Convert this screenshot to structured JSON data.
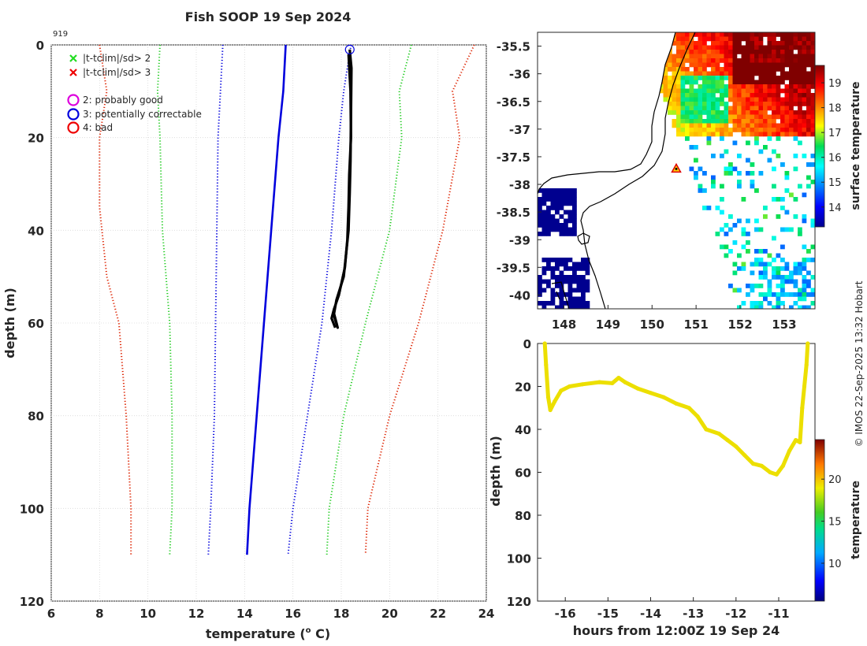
{
  "title": "Fish SOOP 19 Sep 2024",
  "profile_id": "919",
  "credit": "© IMOS 22-Sep-2025 13:32 Hobart",
  "colors": {
    "clim_mean": "#0000dd",
    "sd2": "#22cc22",
    "sd3": "#dd2200",
    "sd_mid": "#0000dd",
    "profile": "#000000",
    "track": "#ecdf00"
  },
  "legend": [
    {
      "name": "x-green",
      "marker": "x",
      "color": "#22dd22",
      "label": "|t-tclim|/sd> 2"
    },
    {
      "name": "x-red",
      "marker": "x",
      "color": "#ee0000",
      "label": "|t-tclim|/sd> 3"
    },
    {
      "name": "o-magenta",
      "marker": "o",
      "color": "#dd00dd",
      "label": "2: probably good"
    },
    {
      "name": "o-blue",
      "marker": "o",
      "color": "#0000dd",
      "label": "3: potentially correctable"
    },
    {
      "name": "o-red",
      "marker": "o",
      "color": "#ee0000",
      "label": "4: bad"
    }
  ],
  "chart_data": [
    {
      "id": "profile",
      "type": "line",
      "xlabel": "temperature (",
      "xlabel_sup": "o",
      "xlabel_end": " C)",
      "ylabel": "depth (m)",
      "xlim": [
        6,
        24
      ],
      "ylim": [
        0,
        120
      ],
      "xticks": [
        6,
        8,
        10,
        12,
        14,
        16,
        18,
        20,
        22,
        24
      ],
      "yticks": [
        0,
        20,
        40,
        60,
        80,
        100,
        120
      ],
      "series": [
        {
          "name": "clim-mean",
          "style": "solid",
          "color": "#0000dd",
          "points": [
            [
              15.7,
              0
            ],
            [
              15.6,
              10
            ],
            [
              15.4,
              20
            ],
            [
              15.1,
              40
            ],
            [
              14.8,
              60
            ],
            [
              14.5,
              80
            ],
            [
              14.2,
              100
            ],
            [
              14.1,
              110
            ]
          ]
        },
        {
          "name": "clim-minus-1sd",
          "style": "dot",
          "color": "#0000dd",
          "points": [
            [
              13.1,
              0
            ],
            [
              13.0,
              10
            ],
            [
              12.9,
              20
            ],
            [
              12.85,
              40
            ],
            [
              12.8,
              60
            ],
            [
              12.75,
              80
            ],
            [
              12.6,
              100
            ],
            [
              12.5,
              110
            ]
          ]
        },
        {
          "name": "clim-plus-1sd",
          "style": "dot",
          "color": "#0000dd",
          "points": [
            [
              18.4,
              0
            ],
            [
              18.1,
              10
            ],
            [
              17.9,
              20
            ],
            [
              17.6,
              40
            ],
            [
              17.2,
              60
            ],
            [
              16.6,
              80
            ],
            [
              16.0,
              100
            ],
            [
              15.8,
              110
            ]
          ]
        },
        {
          "name": "clim-minus-2sd",
          "style": "dot",
          "color": "#22cc22",
          "points": [
            [
              10.5,
              0
            ],
            [
              10.4,
              10
            ],
            [
              10.5,
              20
            ],
            [
              10.6,
              40
            ],
            [
              10.9,
              60
            ],
            [
              11.0,
              80
            ],
            [
              11.0,
              100
            ],
            [
              10.9,
              110
            ]
          ]
        },
        {
          "name": "clim-plus-2sd",
          "style": "dot",
          "color": "#22cc22",
          "points": [
            [
              20.9,
              0
            ],
            [
              20.4,
              10
            ],
            [
              20.5,
              20
            ],
            [
              20.0,
              40
            ],
            [
              19.0,
              60
            ],
            [
              18.1,
              80
            ],
            [
              17.5,
              100
            ],
            [
              17.4,
              110
            ]
          ]
        },
        {
          "name": "clim-minus-3sd",
          "style": "dot",
          "color": "#dd2200",
          "points": [
            [
              8.0,
              0
            ],
            [
              8.3,
              10
            ],
            [
              8.0,
              20
            ],
            [
              8.0,
              35
            ],
            [
              8.3,
              50
            ],
            [
              8.8,
              60
            ],
            [
              9.1,
              80
            ],
            [
              9.3,
              100
            ],
            [
              9.3,
              110
            ]
          ]
        },
        {
          "name": "clim-plus-3sd",
          "style": "dot",
          "color": "#dd2200",
          "points": [
            [
              23.5,
              0
            ],
            [
              22.6,
              10
            ],
            [
              22.9,
              20
            ],
            [
              22.2,
              40
            ],
            [
              21.2,
              60
            ],
            [
              20.0,
              80
            ],
            [
              19.1,
              100
            ],
            [
              19.0,
              110
            ]
          ]
        },
        {
          "name": "profile-down",
          "style": "solid",
          "color": "#000000",
          "points": [
            [
              18.35,
              1
            ],
            [
              18.42,
              5
            ],
            [
              18.4,
              15
            ],
            [
              18.38,
              25
            ],
            [
              18.35,
              32
            ],
            [
              18.3,
              40
            ],
            [
              18.1,
              50
            ],
            [
              17.8,
              55
            ],
            [
              17.7,
              58
            ],
            [
              17.8,
              60
            ],
            [
              17.85,
              61
            ],
            [
              17.7,
              58.5
            ]
          ]
        },
        {
          "name": "profile-up",
          "style": "solid",
          "color": "#000000",
          "points": [
            [
              17.75,
              61
            ],
            [
              17.6,
              59
            ],
            [
              17.7,
              57
            ],
            [
              17.9,
              54
            ],
            [
              18.15,
              48
            ],
            [
              18.25,
              42
            ],
            [
              18.3,
              35
            ],
            [
              18.33,
              28
            ],
            [
              18.4,
              20
            ],
            [
              18.38,
              10
            ],
            [
              18.3,
              2
            ]
          ]
        }
      ],
      "flag_marker": {
        "type": "circle",
        "color": "#0000dd",
        "x": 18.35,
        "y": 1
      }
    },
    {
      "id": "map",
      "type": "heatmap",
      "xlim": [
        147.4,
        153.7
      ],
      "ylim": [
        -40.25,
        -35.25
      ],
      "xticks": [
        148,
        149,
        150,
        151,
        152,
        153
      ],
      "yticks": [
        -35.5,
        -36,
        -36.5,
        -37,
        -37.5,
        -38,
        -38.5,
        -39,
        -39.5,
        -40
      ],
      "ytick_labels": [
        "-35.5",
        "-36",
        "-36.5",
        "-37",
        "-37.5",
        "-38",
        "-38.5",
        "-39",
        "-39.5",
        "-40"
      ],
      "colorbar_label": "surface temperature",
      "colorbar_range": [
        13.2,
        19.7
      ],
      "colorbar_ticks": [
        14,
        15,
        16,
        17,
        18,
        19
      ],
      "station": {
        "lon": 150.55,
        "lat": -37.72
      }
    },
    {
      "id": "track",
      "type": "line",
      "xlabel": "hours from 12:00Z 19 Sep 24",
      "ylabel": "depth (m)",
      "xlim": [
        -16.65,
        -10.15
      ],
      "ylim": [
        0,
        120
      ],
      "xticks": [
        -16,
        -15,
        -14,
        -13,
        -12,
        -11
      ],
      "yticks": [
        0,
        20,
        40,
        60,
        80,
        100,
        120
      ],
      "colorbar_label": "temperature",
      "colorbar_range": [
        5.5,
        24.7
      ],
      "colorbar_ticks": [
        10,
        15,
        20
      ],
      "points": [
        [
          -16.48,
          0
        ],
        [
          -16.45,
          10
        ],
        [
          -16.4,
          25
        ],
        [
          -16.35,
          31
        ],
        [
          -16.25,
          27
        ],
        [
          -16.1,
          22
        ],
        [
          -15.9,
          20
        ],
        [
          -15.6,
          19
        ],
        [
          -15.2,
          18
        ],
        [
          -14.9,
          18.5
        ],
        [
          -14.75,
          16
        ],
        [
          -14.6,
          18
        ],
        [
          -14.3,
          21
        ],
        [
          -14.0,
          23
        ],
        [
          -13.7,
          25
        ],
        [
          -13.4,
          28
        ],
        [
          -13.1,
          30
        ],
        [
          -12.9,
          34
        ],
        [
          -12.7,
          40
        ],
        [
          -12.4,
          42
        ],
        [
          -12.2,
          45
        ],
        [
          -12.0,
          48
        ],
        [
          -11.8,
          52
        ],
        [
          -11.6,
          56
        ],
        [
          -11.4,
          57
        ],
        [
          -11.2,
          60
        ],
        [
          -11.05,
          61
        ],
        [
          -10.9,
          57
        ],
        [
          -10.75,
          50
        ],
        [
          -10.6,
          45
        ],
        [
          -10.5,
          46
        ],
        [
          -10.45,
          30
        ],
        [
          -10.4,
          20
        ],
        [
          -10.35,
          10
        ],
        [
          -10.32,
          0
        ]
      ]
    }
  ]
}
